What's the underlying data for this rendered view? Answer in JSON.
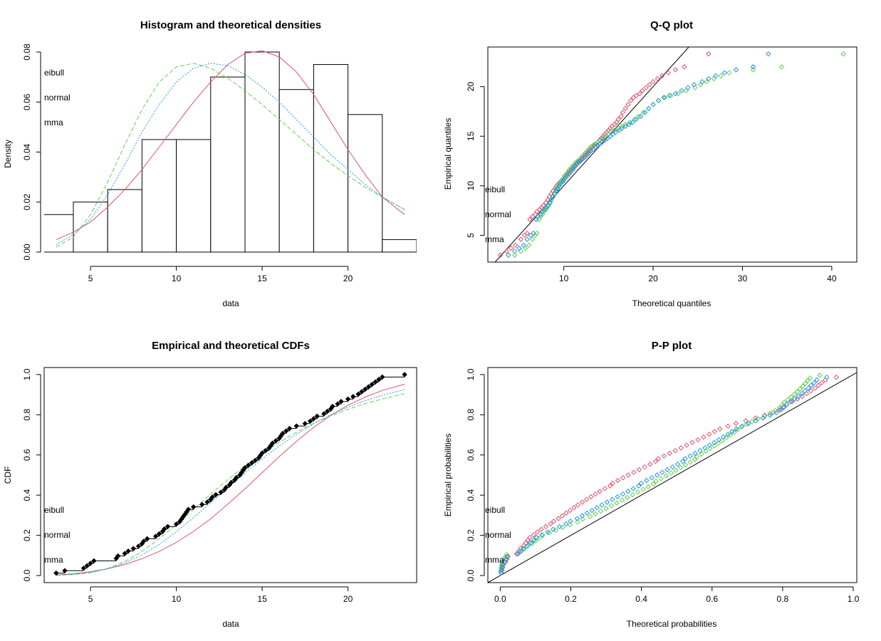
{
  "colors": {
    "weibull": "#DF536B",
    "lognormal": "#61D04F",
    "gamma": "#2297E6",
    "axis": "#000000"
  },
  "legend_labels": [
    "eibull",
    "normal",
    "mma"
  ],
  "chart_data": [
    {
      "id": "hist",
      "type": "bar",
      "title": "Histogram and theoretical densities",
      "xlabel": "data",
      "ylabel": "Density",
      "xlim": [
        2.3,
        24.0
      ],
      "ylim": [
        -0.004,
        0.082
      ],
      "xticks": [
        5,
        10,
        15,
        20
      ],
      "yticks": [
        0.0,
        0.02,
        0.04,
        0.06,
        0.08
      ],
      "ytick_labels": [
        "0.00",
        "0.02",
        "0.04",
        "0.06",
        "0.08"
      ],
      "bins": [
        [
          2,
          4
        ],
        [
          4,
          6
        ],
        [
          6,
          8
        ],
        [
          8,
          10
        ],
        [
          10,
          12
        ],
        [
          12,
          14
        ],
        [
          14,
          16
        ],
        [
          16,
          18
        ],
        [
          18,
          20
        ],
        [
          20,
          22
        ],
        [
          22,
          24
        ]
      ],
      "values": [
        0.015,
        0.02,
        0.025,
        0.045,
        0.045,
        0.07,
        0.08,
        0.065,
        0.075,
        0.055,
        0.005
      ],
      "curves": [
        {
          "key": "weibull",
          "dash": "",
          "x": [
            3,
            4,
            5,
            6,
            7,
            8,
            9,
            10,
            11,
            12,
            13,
            14,
            15,
            16,
            17,
            18,
            19,
            20,
            21,
            22,
            23.3
          ],
          "y": [
            0.005,
            0.008,
            0.012,
            0.018,
            0.025,
            0.033,
            0.042,
            0.051,
            0.06,
            0.068,
            0.075,
            0.0795,
            0.0805,
            0.078,
            0.072,
            0.063,
            0.052,
            0.041,
            0.031,
            0.022,
            0.015
          ]
        },
        {
          "key": "lognormal",
          "dash": "6,3",
          "x": [
            3,
            4,
            5,
            6,
            7,
            8,
            9,
            10,
            11,
            12,
            13,
            14,
            15,
            16,
            17,
            18,
            19,
            20,
            21,
            22,
            23.3
          ],
          "y": [
            0.002,
            0.006,
            0.015,
            0.028,
            0.043,
            0.057,
            0.068,
            0.074,
            0.0755,
            0.0735,
            0.0695,
            0.0645,
            0.059,
            0.053,
            0.047,
            0.041,
            0.0355,
            0.0305,
            0.026,
            0.022,
            0.017
          ]
        },
        {
          "key": "gamma",
          "dash": "2,2",
          "x": [
            3,
            4,
            5,
            6,
            7,
            8,
            9,
            10,
            11,
            12,
            13,
            14,
            15,
            16,
            17,
            18,
            19,
            20,
            21,
            22,
            23.3
          ],
          "y": [
            0.003,
            0.007,
            0.013,
            0.023,
            0.035,
            0.048,
            0.059,
            0.068,
            0.0735,
            0.0755,
            0.0745,
            0.071,
            0.066,
            0.06,
            0.053,
            0.046,
            0.039,
            0.033,
            0.027,
            0.022,
            0.017
          ]
        }
      ]
    },
    {
      "id": "qq",
      "type": "scatter",
      "title": "Q-Q plot",
      "xlabel": "Theoretical quantiles",
      "ylabel": "Empirical quantiles",
      "xlim": [
        1.5,
        42.8
      ],
      "ylim": [
        2.3,
        24.0
      ],
      "xticks": [
        10,
        20,
        30,
        40
      ],
      "yticks": [
        5,
        10,
        15,
        20
      ],
      "empirical": [
        3.0,
        3.4,
        3.7,
        4.0,
        4.6,
        5.0,
        5.2,
        6.6,
        6.9,
        7.1,
        7.4,
        7.6,
        7.8,
        8.0,
        8.3,
        8.6,
        8.9,
        9.2,
        9.5,
        9.7,
        10.0,
        10.2,
        10.4,
        10.6,
        10.8,
        11.0,
        11.2,
        11.4,
        11.6,
        11.8,
        12.0,
        12.2,
        12.4,
        12.5,
        12.7,
        12.9,
        13.1,
        13.3,
        13.5,
        13.7,
        13.9,
        14.1,
        14.2,
        14.4,
        14.6,
        14.8,
        15.0,
        15.2,
        15.4,
        15.6,
        15.8,
        16.0,
        16.2,
        16.4,
        16.7,
        17.0,
        17.4,
        17.8,
        18.2,
        18.6,
        18.9,
        19.1,
        19.3,
        19.6,
        19.9,
        20.2,
        20.5,
        20.8,
        21.1,
        21.4,
        21.7,
        22.0,
        23.3
      ],
      "series": [
        {
          "key": "weibull",
          "x": [
            2.9,
            3.6,
            4.1,
            4.6,
            5.2,
            5.6,
            5.9,
            6.2,
            6.5,
            6.8,
            7.0,
            7.3,
            7.5,
            7.7,
            8.0,
            8.2,
            8.4,
            8.6,
            8.8,
            9.0,
            9.2,
            9.4,
            9.6,
            9.8,
            10.0,
            10.2,
            10.4,
            10.6,
            10.8,
            11.0,
            11.2,
            11.4,
            11.6,
            11.8,
            12.0,
            12.2,
            12.4,
            12.6,
            12.8,
            13.0,
            13.2,
            13.4,
            13.6,
            13.8,
            14.0,
            14.2,
            14.4,
            14.6,
            14.8,
            15.0,
            15.2,
            15.4,
            15.7,
            15.9,
            16.1,
            16.4,
            16.6,
            16.9,
            17.2,
            17.5,
            17.8,
            18.1,
            18.5,
            18.8,
            19.2,
            19.6,
            20.0,
            20.5,
            21.0,
            21.7,
            22.5,
            23.5,
            26.2
          ]
        },
        {
          "key": "lognormal",
          "x": [
            4.5,
            5.2,
            5.7,
            6.1,
            6.5,
            6.8,
            7.0,
            7.2,
            7.4,
            7.6,
            7.8,
            8.0,
            8.1,
            8.3,
            8.5,
            8.6,
            8.8,
            8.9,
            9.1,
            9.2,
            9.4,
            9.5,
            9.7,
            9.8,
            10.0,
            10.1,
            10.3,
            10.5,
            10.6,
            10.8,
            11.0,
            11.2,
            11.4,
            11.6,
            11.8,
            12.0,
            12.2,
            12.4,
            12.6,
            12.8,
            13.0,
            13.3,
            13.5,
            13.8,
            14.1,
            14.4,
            14.7,
            15.0,
            15.3,
            15.7,
            16.1,
            16.5,
            16.9,
            17.4,
            17.9,
            18.4,
            18.9,
            19.5,
            20.0,
            20.6,
            21.3,
            22.0,
            22.8,
            23.7,
            24.7,
            25.3,
            26.0,
            26.8,
            27.6,
            28.5,
            31.2,
            34.4,
            41.3
          ]
        },
        {
          "key": "gamma",
          "x": [
            3.8,
            4.5,
            5.0,
            5.5,
            5.9,
            6.3,
            6.6,
            6.9,
            7.1,
            7.4,
            7.6,
            7.8,
            8.0,
            8.2,
            8.4,
            8.6,
            8.8,
            9.0,
            9.2,
            9.3,
            9.5,
            9.7,
            9.9,
            10.0,
            10.2,
            10.4,
            10.6,
            10.8,
            11.0,
            11.1,
            11.3,
            11.5,
            11.7,
            11.9,
            12.1,
            12.4,
            12.6,
            12.8,
            13.0,
            13.3,
            13.5,
            13.8,
            14.0,
            14.3,
            14.6,
            14.9,
            15.2,
            15.5,
            15.8,
            16.2,
            16.5,
            16.9,
            17.3,
            17.7,
            18.1,
            18.6,
            19.1,
            19.5,
            20.0,
            20.6,
            21.2,
            21.8,
            22.5,
            23.2,
            23.9,
            24.6,
            25.5,
            26.2,
            27.0,
            28.0,
            29.3,
            31.2,
            32.9
          ]
        }
      ]
    },
    {
      "id": "cdf",
      "type": "line",
      "title": "Empirical and theoretical CDFs",
      "xlabel": "data",
      "ylabel": "CDF",
      "xlim": [
        2.3,
        24.0
      ],
      "ylim": [
        -0.035,
        1.035
      ],
      "xticks": [
        5,
        10,
        15,
        20
      ],
      "yticks": [
        0.0,
        0.2,
        0.4,
        0.6,
        0.8,
        1.0
      ],
      "ytick_labels": [
        "0.0",
        "0.2",
        "0.4",
        "0.6",
        "0.8",
        "1.0"
      ],
      "empirical_x": [
        3.0,
        3.5,
        4.6,
        4.8,
        5.0,
        5.2,
        6.5,
        6.6,
        7.0,
        7.2,
        7.5,
        7.8,
        8.0,
        8.1,
        8.3,
        8.8,
        9.0,
        9.2,
        9.3,
        9.5,
        10.0,
        10.2,
        10.3,
        10.4,
        10.5,
        10.6,
        10.7,
        11.0,
        11.5,
        11.8,
        12.0,
        12.1,
        12.3,
        12.6,
        12.8,
        12.9,
        13.1,
        13.2,
        13.4,
        13.5,
        13.7,
        13.8,
        13.9,
        14.0,
        14.2,
        14.4,
        14.6,
        14.8,
        14.9,
        15.0,
        15.2,
        15.4,
        15.5,
        15.6,
        15.8,
        16.0,
        16.1,
        16.2,
        16.4,
        16.6,
        17.0,
        17.5,
        17.8,
        18.0,
        18.2,
        18.6,
        18.8,
        19.0,
        19.1,
        19.4,
        19.6,
        20.0,
        20.3,
        20.6,
        20.8,
        21.0,
        21.2,
        21.4,
        21.6,
        21.8,
        22.0,
        23.3
      ],
      "curves": [
        {
          "key": "weibull",
          "dash": "",
          "x": [
            3,
            4,
            5,
            6,
            7,
            8,
            9,
            10,
            11,
            12,
            13,
            14,
            15,
            16,
            17,
            18,
            19,
            20,
            21,
            22,
            23.3
          ],
          "y": [
            0.003,
            0.009,
            0.019,
            0.034,
            0.055,
            0.084,
            0.12,
            0.165,
            0.22,
            0.282,
            0.355,
            0.432,
            0.512,
            0.592,
            0.668,
            0.737,
            0.797,
            0.847,
            0.888,
            0.921,
            0.952
          ]
        },
        {
          "key": "lognormal",
          "dash": "6,3",
          "x": [
            3,
            4,
            5,
            6,
            7,
            8,
            9,
            10,
            11,
            12,
            13,
            14,
            15,
            16,
            17,
            18,
            19,
            20,
            21,
            22,
            23.3
          ],
          "y": [
            0.001,
            0.005,
            0.014,
            0.035,
            0.07,
            0.12,
            0.183,
            0.255,
            0.33,
            0.405,
            0.477,
            0.545,
            0.607,
            0.663,
            0.713,
            0.757,
            0.795,
            0.827,
            0.855,
            0.878,
            0.905
          ]
        },
        {
          "key": "gamma",
          "dash": "2,2",
          "x": [
            3,
            4,
            5,
            6,
            7,
            8,
            9,
            10,
            11,
            12,
            13,
            14,
            15,
            16,
            17,
            18,
            19,
            20,
            21,
            22,
            23.3
          ],
          "y": [
            0.002,
            0.006,
            0.016,
            0.033,
            0.062,
            0.103,
            0.155,
            0.218,
            0.288,
            0.362,
            0.437,
            0.51,
            0.58,
            0.645,
            0.703,
            0.755,
            0.8,
            0.838,
            0.87,
            0.897,
            0.925
          ]
        }
      ]
    },
    {
      "id": "pp",
      "type": "scatter",
      "title": "P-P plot",
      "xlabel": "Theoretical probabilities",
      "ylabel": "Empirical probabilities",
      "xlim": [
        -0.035,
        1.01
      ],
      "ylim": [
        -0.035,
        1.035
      ],
      "xticks": [
        0.0,
        0.2,
        0.4,
        0.6,
        0.8,
        1.0
      ],
      "xtick_labels": [
        "0.0",
        "0.2",
        "0.4",
        "0.6",
        "0.8",
        "1.0"
      ],
      "yticks": [
        0.0,
        0.2,
        0.4,
        0.6,
        0.8,
        1.0
      ],
      "ytick_labels": [
        "0.0",
        "0.2",
        "0.4",
        "0.6",
        "0.8",
        "1.0"
      ]
    }
  ]
}
